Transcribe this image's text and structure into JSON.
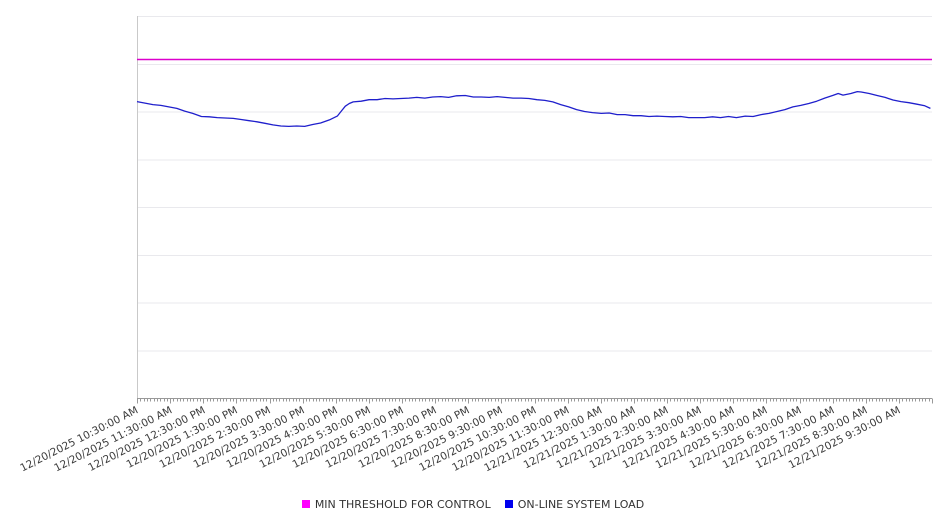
{
  "chart_data": {
    "type": "line",
    "title": "",
    "xlabel": "",
    "ylabel": "",
    "legend_position": "bottom-center",
    "x_tick_labels": [
      "12/20/2025 10:30:00 AM",
      "12/20/2025 11:30:00 AM",
      "12/20/2025 12:30:00 PM",
      "12/20/2025 1:30:00 PM",
      "12/20/2025 2:30:00 PM",
      "12/20/2025 3:30:00 PM",
      "12/20/2025 4:30:00 PM",
      "12/20/2025 5:30:00 PM",
      "12/20/2025 6:30:00 PM",
      "12/20/2025 7:30:00 PM",
      "12/20/2025 8:30:00 PM",
      "12/20/2025 9:30:00 PM",
      "12/20/2025 10:30:00 PM",
      "12/20/2025 11:30:00 PM",
      "12/21/2025 12:30:00 AM",
      "12/21/2025 1:30:00 AM",
      "12/21/2025 2:30:00 AM",
      "12/21/2025 3:30:00 AM",
      "12/21/2025 4:30:00 AM",
      "12/21/2025 5:30:00 AM",
      "12/21/2025 6:30:00 AM",
      "12/21/2025 7:30:00 AM",
      "12/21/2025 8:30:00 AM",
      "12/21/2025 9:30:00 AM"
    ],
    "y_axis": {
      "labeled": false,
      "gridline_divisions": 8,
      "scale_note": "y-axis shows no tick labels; series values below are percent of plot height above the x-axis, estimated from gridlines"
    },
    "series": [
      {
        "name": "MIN THRESHOLD FOR CONTROL",
        "color": "#FF00FF",
        "line_color": "#DD00CC",
        "type": "constant",
        "value": 88.6
      },
      {
        "name": "ON-LINE SYSTEM LOAD",
        "color": "#0000EE",
        "line_color": "#1F1FCC",
        "type": "line",
        "points": [
          [
            0.0,
            77.6
          ],
          [
            0.01,
            77.2
          ],
          [
            0.02,
            76.8
          ],
          [
            0.03,
            76.6
          ],
          [
            0.04,
            76.2
          ],
          [
            0.05,
            75.8
          ],
          [
            0.06,
            75.1
          ],
          [
            0.07,
            74.5
          ],
          [
            0.081,
            73.7
          ],
          [
            0.091,
            73.6
          ],
          [
            0.101,
            73.4
          ],
          [
            0.111,
            73.3
          ],
          [
            0.121,
            73.2
          ],
          [
            0.131,
            72.9
          ],
          [
            0.141,
            72.6
          ],
          [
            0.151,
            72.3
          ],
          [
            0.161,
            71.9
          ],
          [
            0.171,
            71.5
          ],
          [
            0.181,
            71.2
          ],
          [
            0.191,
            71.1
          ],
          [
            0.201,
            71.2
          ],
          [
            0.211,
            71.1
          ],
          [
            0.221,
            71.6
          ],
          [
            0.231,
            72.0
          ],
          [
            0.242,
            72.8
          ],
          [
            0.252,
            73.8
          ],
          [
            0.257,
            75.1
          ],
          [
            0.262,
            76.4
          ],
          [
            0.267,
            77.1
          ],
          [
            0.272,
            77.5
          ],
          [
            0.282,
            77.7
          ],
          [
            0.292,
            78.1
          ],
          [
            0.302,
            78.1
          ],
          [
            0.312,
            78.4
          ],
          [
            0.322,
            78.3
          ],
          [
            0.332,
            78.4
          ],
          [
            0.342,
            78.5
          ],
          [
            0.352,
            78.7
          ],
          [
            0.362,
            78.5
          ],
          [
            0.372,
            78.8
          ],
          [
            0.382,
            78.9
          ],
          [
            0.392,
            78.7
          ],
          [
            0.402,
            79.1
          ],
          [
            0.413,
            79.2
          ],
          [
            0.423,
            78.8
          ],
          [
            0.433,
            78.8
          ],
          [
            0.443,
            78.7
          ],
          [
            0.453,
            78.9
          ],
          [
            0.463,
            78.7
          ],
          [
            0.473,
            78.5
          ],
          [
            0.483,
            78.5
          ],
          [
            0.493,
            78.4
          ],
          [
            0.503,
            78.1
          ],
          [
            0.513,
            77.9
          ],
          [
            0.523,
            77.5
          ],
          [
            0.533,
            76.8
          ],
          [
            0.543,
            76.2
          ],
          [
            0.553,
            75.5
          ],
          [
            0.563,
            75.0
          ],
          [
            0.573,
            74.7
          ],
          [
            0.584,
            74.5
          ],
          [
            0.594,
            74.6
          ],
          [
            0.604,
            74.2
          ],
          [
            0.614,
            74.2
          ],
          [
            0.624,
            73.9
          ],
          [
            0.634,
            73.9
          ],
          [
            0.644,
            73.7
          ],
          [
            0.654,
            73.8
          ],
          [
            0.664,
            73.7
          ],
          [
            0.674,
            73.6
          ],
          [
            0.684,
            73.7
          ],
          [
            0.694,
            73.4
          ],
          [
            0.704,
            73.4
          ],
          [
            0.714,
            73.4
          ],
          [
            0.724,
            73.6
          ],
          [
            0.734,
            73.4
          ],
          [
            0.744,
            73.7
          ],
          [
            0.754,
            73.4
          ],
          [
            0.765,
            73.8
          ],
          [
            0.775,
            73.7
          ],
          [
            0.785,
            74.2
          ],
          [
            0.795,
            74.5
          ],
          [
            0.805,
            75.0
          ],
          [
            0.815,
            75.5
          ],
          [
            0.825,
            76.2
          ],
          [
            0.835,
            76.6
          ],
          [
            0.845,
            77.1
          ],
          [
            0.855,
            77.7
          ],
          [
            0.865,
            78.5
          ],
          [
            0.875,
            79.2
          ],
          [
            0.882,
            79.7
          ],
          [
            0.888,
            79.3
          ],
          [
            0.898,
            79.7
          ],
          [
            0.906,
            80.2
          ],
          [
            0.911,
            80.1
          ],
          [
            0.921,
            79.7
          ],
          [
            0.931,
            79.2
          ],
          [
            0.941,
            78.7
          ],
          [
            0.951,
            78.0
          ],
          [
            0.961,
            77.6
          ],
          [
            0.971,
            77.3
          ],
          [
            0.981,
            76.9
          ],
          [
            0.991,
            76.5
          ],
          [
            0.998,
            75.8
          ]
        ]
      }
    ]
  },
  "colors": {
    "background": "#ffffff",
    "gridline": "#e9e9ed",
    "plot_left_border": "#c9c9c9",
    "axis_line": "#999999",
    "tick": "#999999",
    "tick_label_text": "#3c3c3c",
    "legend_text": "#333333"
  },
  "axis": {
    "minor_ticks_per_interval": 10
  }
}
